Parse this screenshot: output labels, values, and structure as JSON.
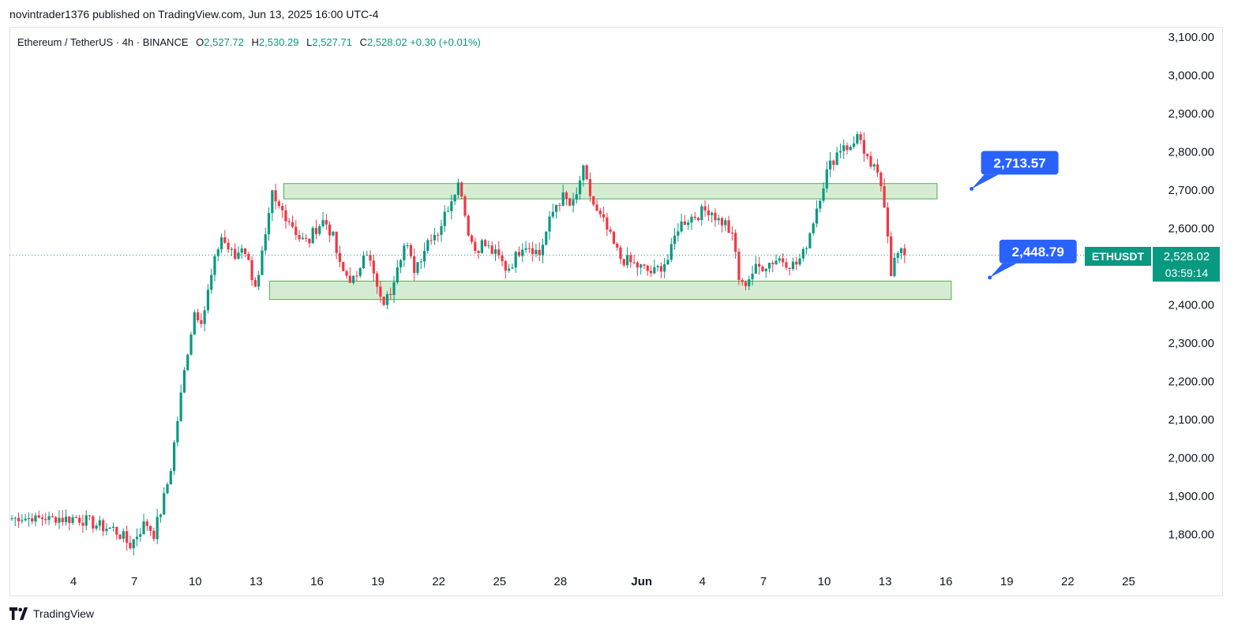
{
  "header": {
    "author": "novintrader1376",
    "published_on": "published on TradingView.com,",
    "datetime": "Jun 13, 2025 16:00 UTC-4"
  },
  "legend": {
    "symbol": "Ethereum / TetherUS · 4h · BINANCE",
    "o_label": "O",
    "o_value": "2,527.72",
    "h_label": "H",
    "h_value": "2,530.29",
    "l_label": "L",
    "l_value": "2,527.71",
    "c_label": "C",
    "c_value": "2,528.02",
    "change": "+0.30 (+0.01%)"
  },
  "price_tag": {
    "symbol": "ETHUSDT",
    "price": "2,528.02",
    "countdown": "03:59:14"
  },
  "footer": {
    "brand": "TradingView"
  },
  "colors": {
    "up": "#089981",
    "down": "#f23645",
    "zone": "#d5ecd3",
    "zone_border": "#4caf50",
    "callout": "#2962ff"
  },
  "chart_data": {
    "type": "candlestick",
    "title": "Ethereum / TetherUS · 4h · BINANCE",
    "ylim": [
      1730,
      3110
    ],
    "yticks": [
      "3,100.00",
      "3,000.00",
      "2,900.00",
      "2,800.00",
      "2,700.00",
      "2,600.00",
      "2,500.00",
      "2,400.00",
      "2,300.00",
      "2,200.00",
      "2,100.00",
      "2,000.00",
      "1,900.00",
      "1,800.00"
    ],
    "ytick_values": [
      3100,
      3000,
      2900,
      2800,
      2700,
      2600,
      2500,
      2400,
      2300,
      2200,
      2100,
      2000,
      1900,
      1800
    ],
    "x_domain_days": [
      1,
      31.5
    ],
    "xticks": [
      {
        "label": "4",
        "day": 4
      },
      {
        "label": "7",
        "day": 7
      },
      {
        "label": "10",
        "day": 10
      },
      {
        "label": "13",
        "day": 13
      },
      {
        "label": "16",
        "day": 16
      },
      {
        "label": "19",
        "day": 19
      },
      {
        "label": "22",
        "day": 22
      },
      {
        "label": "25",
        "day": 25
      },
      {
        "label": "28",
        "day": 28
      },
      {
        "label": "Jun",
        "day": 32
      },
      {
        "label": "4",
        "day": 35
      },
      {
        "label": "7",
        "day": 38
      },
      {
        "label": "10",
        "day": 41
      },
      {
        "label": "13",
        "day": 44
      },
      {
        "label": "16",
        "day": 47
      },
      {
        "label": "19",
        "day": 50
      },
      {
        "label": "22",
        "day": 53
      },
      {
        "label": "25",
        "day": 56
      }
    ],
    "last_price": 2528.02,
    "zones": [
      {
        "name": "resistance-zone",
        "low": 2675,
        "high": 2715,
        "from_day": 14.4,
        "to_day": 46.6
      },
      {
        "name": "support-zone",
        "low": 2412,
        "high": 2460,
        "from_day": 13.7,
        "to_day": 47.3
      }
    ],
    "callouts": [
      {
        "label": "2,713.57",
        "value": 2713.57,
        "day": 48.3
      },
      {
        "label": "2,448.79",
        "value": 2448.79,
        "day": 49.2
      }
    ],
    "close_path": [
      [
        3.0,
        1845
      ],
      [
        3.6,
        1838
      ],
      [
        4.2,
        1842
      ],
      [
        4.8,
        1830
      ],
      [
        5.4,
        1818
      ],
      [
        6.0,
        1812
      ],
      [
        6.5,
        1790
      ],
      [
        6.8,
        1768
      ],
      [
        7.2,
        1800
      ],
      [
        7.6,
        1830
      ],
      [
        8.0,
        1800
      ],
      [
        8.4,
        1870
      ],
      [
        8.8,
        1960
      ],
      [
        9.2,
        2110
      ],
      [
        9.6,
        2260
      ],
      [
        10.0,
        2380
      ],
      [
        10.4,
        2360
      ],
      [
        10.7,
        2440
      ],
      [
        11.0,
        2510
      ],
      [
        11.3,
        2580
      ],
      [
        11.6,
        2550
      ],
      [
        12.0,
        2520
      ],
      [
        12.4,
        2560
      ],
      [
        12.8,
        2480
      ],
      [
        13.1,
        2440
      ],
      [
        13.3,
        2520
      ],
      [
        13.6,
        2590
      ],
      [
        13.8,
        2690
      ],
      [
        14.0,
        2660
      ],
      [
        14.4,
        2640
      ],
      [
        14.8,
        2610
      ],
      [
        15.2,
        2570
      ],
      [
        15.6,
        2560
      ],
      [
        16.0,
        2600
      ],
      [
        16.4,
        2620
      ],
      [
        16.8,
        2580
      ],
      [
        17.2,
        2490
      ],
      [
        17.6,
        2470
      ],
      [
        18.0,
        2460
      ],
      [
        18.4,
        2560
      ],
      [
        18.8,
        2480
      ],
      [
        19.2,
        2400
      ],
      [
        19.6,
        2420
      ],
      [
        20.0,
        2510
      ],
      [
        20.4,
        2560
      ],
      [
        20.8,
        2490
      ],
      [
        21.2,
        2530
      ],
      [
        21.6,
        2580
      ],
      [
        22.0,
        2590
      ],
      [
        22.4,
        2640
      ],
      [
        22.8,
        2700
      ],
      [
        23.1,
        2720
      ],
      [
        23.4,
        2610
      ],
      [
        23.8,
        2540
      ],
      [
        24.2,
        2560
      ],
      [
        24.6,
        2540
      ],
      [
        25.0,
        2520
      ],
      [
        25.4,
        2490
      ],
      [
        25.8,
        2520
      ],
      [
        26.2,
        2560
      ],
      [
        26.6,
        2550
      ],
      [
        27.0,
        2530
      ],
      [
        27.4,
        2600
      ],
      [
        27.8,
        2660
      ],
      [
        28.2,
        2680
      ],
      [
        28.6,
        2650
      ],
      [
        28.9,
        2690
      ],
      [
        29.1,
        2760
      ],
      [
        29.4,
        2700
      ],
      [
        29.8,
        2640
      ],
      [
        30.2,
        2610
      ],
      [
        30.6,
        2560
      ],
      [
        31.0,
        2520
      ],
      [
        31.4,
        2510
      ],
      [
        31.8,
        2500
      ],
      [
        32.2,
        2490
      ],
      [
        32.6,
        2480
      ],
      [
        33.0,
        2500
      ],
      [
        33.4,
        2520
      ],
      [
        33.8,
        2600
      ],
      [
        34.2,
        2620
      ],
      [
        34.6,
        2630
      ],
      [
        35.0,
        2640
      ],
      [
        35.4,
        2650
      ],
      [
        35.8,
        2620
      ],
      [
        36.2,
        2610
      ],
      [
        36.6,
        2560
      ],
      [
        36.9,
        2440
      ],
      [
        37.2,
        2460
      ],
      [
        37.6,
        2490
      ],
      [
        38.0,
        2500
      ],
      [
        38.4,
        2510
      ],
      [
        38.8,
        2520
      ],
      [
        39.2,
        2510
      ],
      [
        39.6,
        2500
      ],
      [
        40.0,
        2530
      ],
      [
        40.4,
        2600
      ],
      [
        40.8,
        2680
      ],
      [
        41.2,
        2750
      ],
      [
        41.6,
        2790
      ],
      [
        42.0,
        2820
      ],
      [
        42.4,
        2800
      ],
      [
        42.7,
        2860
      ],
      [
        43.0,
        2780
      ],
      [
        43.4,
        2760
      ],
      [
        43.8,
        2720
      ],
      [
        44.1,
        2640
      ],
      [
        44.3,
        2480
      ],
      [
        44.6,
        2530
      ],
      [
        44.9,
        2530
      ],
      [
        45.0,
        2528
      ]
    ]
  }
}
